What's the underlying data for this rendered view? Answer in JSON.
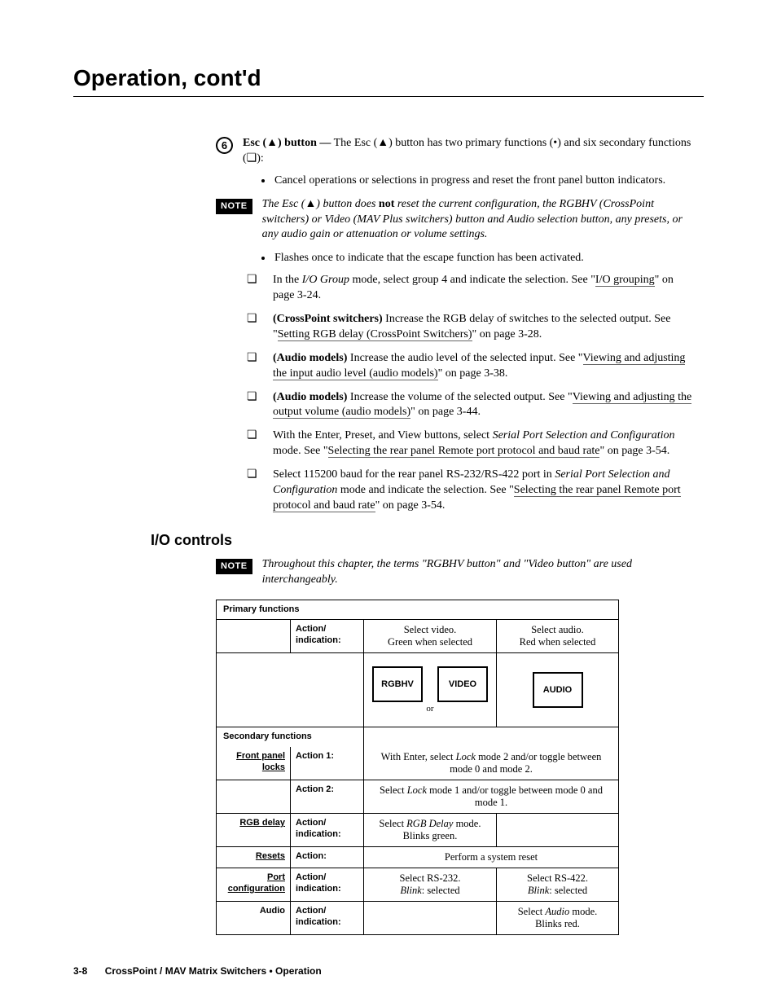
{
  "chapter_title": "Operation, cont'd",
  "callout_number": "6",
  "lead_html": "<b>Esc (▲) button —</b> The Esc (▲) button has two primary functions (•) and six secondary functions (❏):",
  "first_bullets": [
    "Cancel operations or selections in progress and reset the front panel button indicators."
  ],
  "note1_label": "NOTE",
  "note1_html": "The Esc (▲) button does <span class=\"no-ital\">not</span> reset the current configuration, the RGBHV (CrossPoint switchers) or Video (MAV Plus switchers) button and Audio selection button, any presets, or any audio gain or attenuation or volume settings.",
  "mid_bullets": [
    "Flashes once to indicate that the escape function has been activated."
  ],
  "box_items": [
    "In the <i>I/O Group</i> mode, select group 4 and indicate the selection. See \"<span class=\"link\">I/O grouping</span>\" on page 3-24.",
    "<b>(CrossPoint switchers)</b> Increase the RGB delay of switches to the selected output.  See \"<span class=\"link\">Setting RGB delay (CrossPoint Switchers)</span>\" on page 3-28.",
    "<b>(Audio models)</b> Increase the audio level of the selected input. See \"<span class=\"link\">Viewing and adjusting the input audio level (audio models)</span>\" on page 3-38.",
    "<b>(Audio models)</b> Increase the volume of the selected output. See \"<span class=\"link\">Viewing and adjusting the output volume (audio models)</span>\" on page 3-44.",
    "With the Enter, Preset, and View buttons, select <i>Serial Port Selection and Configuration</i> mode.  See \"<span class=\"link\">Selecting the rear panel Remote port protocol and baud rate</span>\" on page 3-54.",
    "Select 115200 baud for the rear panel RS-232/RS-422 port in <i>Serial Port Selection and Configuration</i> mode and indicate the selection.  See \"<span class=\"link\">Selecting the rear panel Remote port protocol and baud rate</span>\" on page 3-54."
  ],
  "section_head": "I/O controls",
  "note2_label": "NOTE",
  "note2_html": "Throughout this chapter, the terms \"RGBHV button\" and \"Video button\" are used interchangeably.",
  "table": {
    "primary_label": "Primary functions",
    "action_ind": "Action/ indication:",
    "sel_video": "Select video.<br>Green when selected",
    "sel_audio": "Select audio.<br>Red when selected",
    "btns": {
      "rgbhv": "RGBHV",
      "video": "VIDEO",
      "audio": "AUDIO",
      "or": "or"
    },
    "secondary_label": "Secondary functions",
    "rows": [
      {
        "label": "Front panel locks",
        "action": "Action 1:",
        "span2": "With Enter, select <i>Lock</i> mode 2 and/or toggle between mode 0 and mode 2.",
        "underline": true
      },
      {
        "label": "",
        "action": "Action 2:",
        "span2": "Select <i>Lock</i> mode 1 and/or toggle between mode 0 and mode 1."
      },
      {
        "label": "RGB delay",
        "action": "Action/ indication:",
        "mid": "Select <i>RGB Delay</i> mode.<br>Blinks green.",
        "right": "",
        "underline": true
      },
      {
        "label": "Resets",
        "action": "Action:",
        "span2": "Perform a system reset",
        "underline": true
      },
      {
        "label": "Port configuration",
        "action": "Action/ indication:",
        "mid": "Select RS-232.<br><i>Blink</i>: selected",
        "right": "Select RS-422.<br><i>Blink</i>: selected",
        "underline": true
      },
      {
        "label": "Audio",
        "action": "Action/ indication:",
        "mid": "",
        "right": "Select <i>Audio</i> mode.<br>Blinks red."
      }
    ]
  },
  "footer_page": "3-8",
  "footer_text": "CrossPoint / MAV Matrix Switchers • Operation"
}
